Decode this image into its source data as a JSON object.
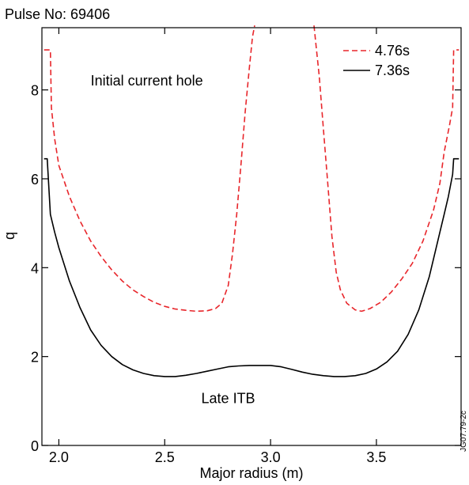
{
  "chart_data": {
    "type": "line",
    "title": "Pulse No: 69406",
    "xlabel": "Major radius (m)",
    "ylabel": "q",
    "xlim": [
      1.92,
      3.9
    ],
    "ylim": [
      0,
      9.4
    ],
    "xticks": [
      2.0,
      2.5,
      3.0,
      3.5
    ],
    "xtick_labels": [
      "2.0",
      "2.5",
      "3.0",
      "3.5"
    ],
    "yticks": [
      0,
      2,
      4,
      6,
      8
    ],
    "ytick_labels": [
      "0",
      "2",
      "4",
      "6",
      "8"
    ],
    "grid": false,
    "legend_position": "top-right",
    "series": [
      {
        "name": "4.76s",
        "color": "#e8262b",
        "dash": "dashed",
        "segments": [
          [
            [
              1.93,
              8.9
            ],
            [
              1.96,
              8.9
            ],
            [
              1.965,
              7.6
            ],
            [
              1.98,
              6.9
            ],
            [
              2.0,
              6.3
            ],
            [
              2.05,
              5.6
            ],
            [
              2.1,
              5.05
            ],
            [
              2.15,
              4.6
            ],
            [
              2.2,
              4.25
            ],
            [
              2.25,
              3.95
            ],
            [
              2.3,
              3.7
            ],
            [
              2.35,
              3.5
            ],
            [
              2.4,
              3.35
            ],
            [
              2.45,
              3.22
            ],
            [
              2.5,
              3.13
            ],
            [
              2.55,
              3.07
            ],
            [
              2.6,
              3.04
            ],
            [
              2.65,
              3.02
            ],
            [
              2.7,
              3.03
            ],
            [
              2.74,
              3.08
            ],
            [
              2.77,
              3.2
            ],
            [
              2.8,
              3.6
            ],
            [
              2.82,
              4.3
            ],
            [
              2.84,
              5.2
            ],
            [
              2.86,
              6.3
            ],
            [
              2.88,
              7.5
            ],
            [
              2.9,
              8.5
            ],
            [
              2.915,
              9.2
            ],
            [
              2.925,
              9.45
            ]
          ],
          [
            [
              3.205,
              9.45
            ],
            [
              3.215,
              9.0
            ],
            [
              3.23,
              8.3
            ],
            [
              3.25,
              7.1
            ],
            [
              3.27,
              5.9
            ],
            [
              3.29,
              4.7
            ],
            [
              3.31,
              3.9
            ],
            [
              3.33,
              3.5
            ],
            [
              3.36,
              3.2
            ],
            [
              3.4,
              3.05
            ],
            [
              3.43,
              3.02
            ],
            [
              3.47,
              3.08
            ],
            [
              3.52,
              3.22
            ],
            [
              3.57,
              3.45
            ],
            [
              3.62,
              3.75
            ],
            [
              3.67,
              4.1
            ],
            [
              3.72,
              4.6
            ],
            [
              3.77,
              5.3
            ],
            [
              3.8,
              5.9
            ],
            [
              3.82,
              6.6
            ],
            [
              3.845,
              7.2
            ],
            [
              3.86,
              7.6
            ],
            [
              3.865,
              8.9
            ],
            [
              3.89,
              8.9
            ]
          ]
        ]
      },
      {
        "name": "7.36s",
        "color": "#000000",
        "dash": "solid",
        "segments": [
          [
            [
              1.93,
              6.45
            ],
            [
              1.945,
              6.45
            ],
            [
              1.96,
              5.2
            ],
            [
              1.98,
              4.8
            ],
            [
              2.0,
              4.45
            ],
            [
              2.05,
              3.7
            ],
            [
              2.1,
              3.1
            ],
            [
              2.15,
              2.6
            ],
            [
              2.2,
              2.25
            ],
            [
              2.25,
              2.0
            ],
            [
              2.3,
              1.82
            ],
            [
              2.35,
              1.7
            ],
            [
              2.4,
              1.62
            ],
            [
              2.45,
              1.57
            ],
            [
              2.5,
              1.55
            ],
            [
              2.55,
              1.55
            ],
            [
              2.6,
              1.58
            ],
            [
              2.65,
              1.62
            ],
            [
              2.7,
              1.67
            ],
            [
              2.75,
              1.72
            ],
            [
              2.8,
              1.77
            ],
            [
              2.85,
              1.79
            ],
            [
              2.9,
              1.8
            ],
            [
              2.95,
              1.8
            ],
            [
              3.0,
              1.8
            ],
            [
              3.05,
              1.77
            ],
            [
              3.1,
              1.71
            ],
            [
              3.15,
              1.65
            ],
            [
              3.2,
              1.6
            ],
            [
              3.25,
              1.57
            ],
            [
              3.3,
              1.55
            ],
            [
              3.35,
              1.55
            ],
            [
              3.4,
              1.57
            ],
            [
              3.45,
              1.62
            ],
            [
              3.5,
              1.72
            ],
            [
              3.55,
              1.88
            ],
            [
              3.6,
              2.12
            ],
            [
              3.65,
              2.5
            ],
            [
              3.7,
              3.05
            ],
            [
              3.75,
              3.8
            ],
            [
              3.8,
              4.8
            ],
            [
              3.82,
              5.2
            ],
            [
              3.84,
              5.6
            ],
            [
              3.86,
              6.1
            ],
            [
              3.865,
              6.45
            ],
            [
              3.89,
              6.45
            ]
          ]
        ]
      }
    ],
    "annotations": [
      {
        "text": "Initial current hole",
        "x": 2.15,
        "y": 8.1,
        "color": "#e8262b"
      },
      {
        "text": "Late ITB",
        "x": 2.8,
        "y": 0.95,
        "color": "#000000"
      }
    ],
    "side_label": "JG07.79-2c"
  }
}
